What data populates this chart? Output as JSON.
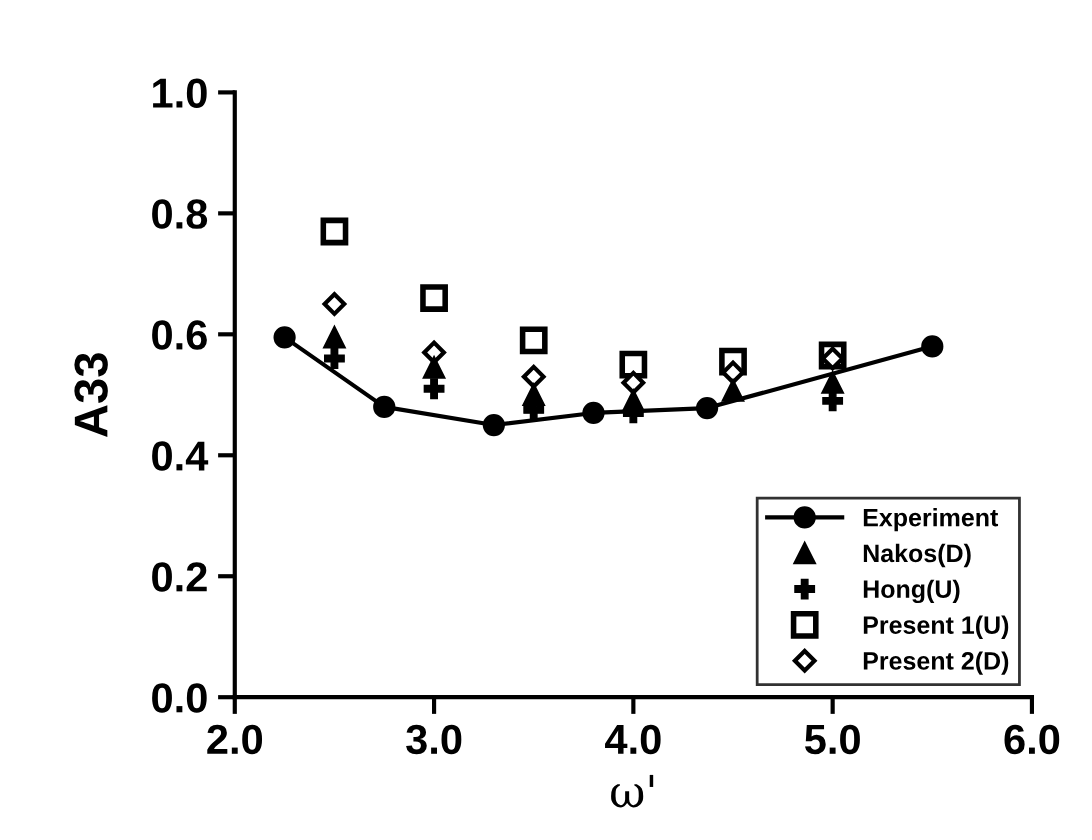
{
  "chart_data": {
    "type": "scatter",
    "xlabel": "ω'",
    "ylabel": "A33",
    "xlim": [
      2.0,
      6.0
    ],
    "xticks": [
      {
        "value": 2,
        "label": "2.0"
      },
      {
        "value": 3,
        "label": "3.0"
      },
      {
        "value": 4,
        "label": "4.0"
      },
      {
        "value": 5,
        "label": "5.0"
      },
      {
        "value": 6,
        "label": "6.0"
      }
    ],
    "ylim": [
      0.0,
      1.0
    ],
    "yticks": [
      {
        "value": 0,
        "label": "0.0"
      },
      {
        "value": 0.2,
        "label": "0.2"
      },
      {
        "value": 0.4,
        "label": "0.4"
      },
      {
        "value": 0.6,
        "label": "0.6"
      },
      {
        "value": 0.8,
        "label": "0.8"
      },
      {
        "value": 1,
        "label": "1.0"
      }
    ],
    "grid": false,
    "legend": "bottom right",
    "series": [
      {
        "name": "Experiment",
        "type": "line",
        "marker": "circle",
        "color": "#000000",
        "x": [
          2.25,
          2.75,
          3.3,
          3.8,
          4.37,
          5.5
        ],
        "values": [
          0.595,
          0.48,
          0.45,
          0.47,
          0.478,
          0.58
        ]
      },
      {
        "name": "Nakos(D)",
        "marker": "triangle",
        "color": "#000000",
        "x": [
          2.5,
          3.0,
          3.5,
          4.0,
          4.5,
          5.0
        ],
        "values": [
          0.595,
          0.545,
          0.5,
          0.49,
          0.507,
          0.52
        ]
      },
      {
        "name": "Hong(U)",
        "marker": "cross",
        "color": "#000000",
        "x": [
          2.5,
          3.0,
          3.5,
          4.0,
          4.5,
          5.0
        ],
        "values": [
          0.56,
          0.51,
          0.475,
          0.47,
          null,
          0.49
        ]
      },
      {
        "name": "Present 1(U)",
        "marker": "square",
        "color": "#000000",
        "x": [
          2.5,
          3.0,
          3.5,
          4.0,
          4.5,
          5.0
        ],
        "values": [
          0.77,
          0.66,
          0.59,
          0.55,
          0.555,
          0.565
        ]
      },
      {
        "name": "Present 2(D)",
        "marker": "diamond",
        "color": "#000000",
        "x": [
          2.5,
          3.0,
          3.5,
          4.0,
          4.5,
          5.0
        ],
        "values": [
          0.65,
          0.57,
          0.53,
          0.52,
          0.537,
          0.56
        ]
      }
    ]
  }
}
